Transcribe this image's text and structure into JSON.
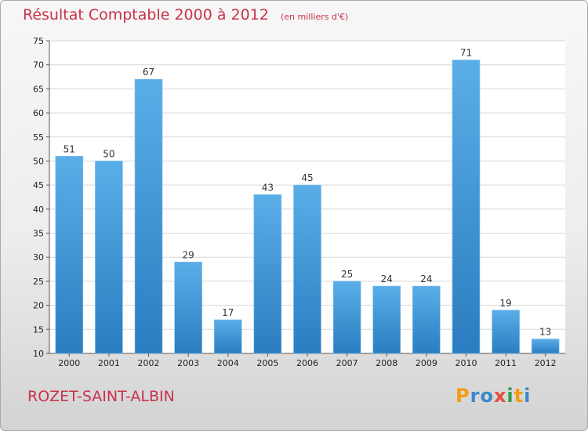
{
  "chart_data": {
    "type": "bar",
    "title": "Résultat Comptable 2000 à 2012",
    "subtitle": "(en milliers d'€)",
    "categories": [
      "2000",
      "2001",
      "2002",
      "2003",
      "2004",
      "2005",
      "2006",
      "2007",
      "2008",
      "2009",
      "2010",
      "2011",
      "2012"
    ],
    "values": [
      51,
      50,
      67,
      29,
      17,
      43,
      45,
      25,
      24,
      24,
      71,
      19,
      13
    ],
    "ylim": [
      10,
      75
    ],
    "yticks": [
      10,
      15,
      20,
      25,
      30,
      35,
      40,
      45,
      50,
      55,
      60,
      65,
      70,
      75
    ],
    "grid": true,
    "colors": {
      "bar_top": "#5aaee8",
      "bar_bottom": "#2a7dc0",
      "grid": "#d7d7d7",
      "title": "#c8324b"
    }
  },
  "footer": {
    "commune": "ROZET-SAINT-ALBIN",
    "logo": "Proxiti"
  }
}
